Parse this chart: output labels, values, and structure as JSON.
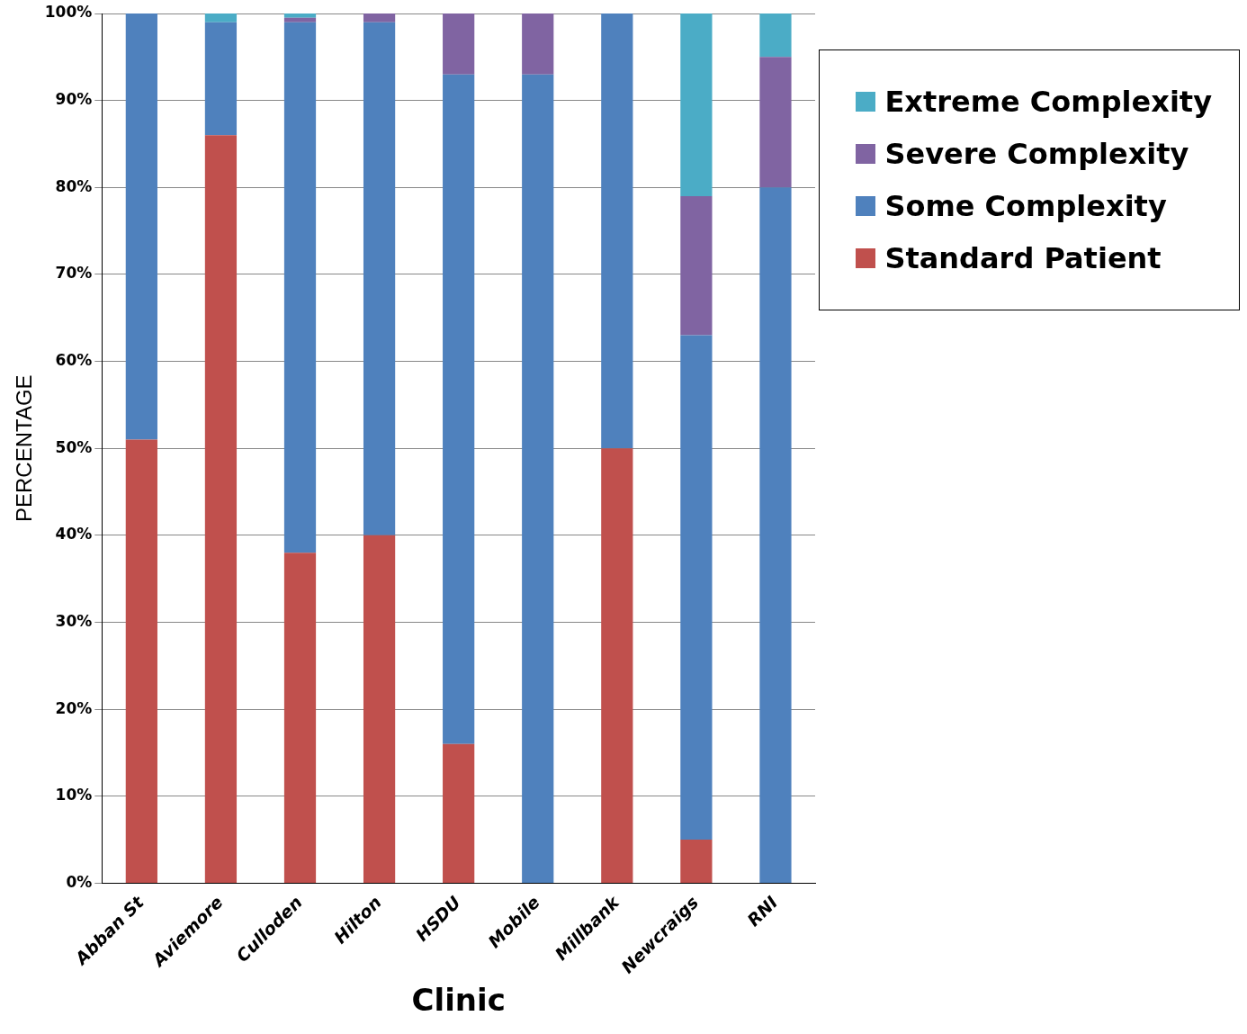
{
  "chart_data": {
    "type": "bar",
    "stacked": true,
    "xlabel": "Clinic",
    "ylabel": "PERCENTAGE",
    "categories": [
      "Abban St",
      "Aviemore",
      "Culloden",
      "Hilton",
      "HSDU",
      "Mobile",
      "Millbank",
      "Newcraigs",
      "RNI"
    ],
    "series": [
      {
        "name": "Standard Patient",
        "color": "#c0504d",
        "values": [
          51,
          86,
          38,
          40,
          16,
          0,
          50,
          5,
          0
        ]
      },
      {
        "name": "Some Complexity",
        "color": "#4f81bd",
        "values": [
          49,
          13,
          61,
          59,
          77,
          93,
          50,
          58,
          80
        ]
      },
      {
        "name": "Severe Complexity",
        "color": "#8064a2",
        "values": [
          0,
          0,
          0.5,
          1,
          7,
          7,
          0,
          16,
          15
        ]
      },
      {
        "name": "Extreme Complexity",
        "color": "#4bacc6",
        "values": [
          0,
          1,
          0.5,
          0,
          0,
          0,
          0,
          21,
          5
        ]
      }
    ],
    "ylim": [
      0,
      100
    ],
    "yticks": [
      {
        "value": 0,
        "label": "0%"
      },
      {
        "value": 10,
        "label": "10%"
      },
      {
        "value": 20,
        "label": "20%"
      },
      {
        "value": 30,
        "label": "30%"
      },
      {
        "value": 40,
        "label": "40%"
      },
      {
        "value": 50,
        "label": "50%"
      },
      {
        "value": 60,
        "label": "60%"
      },
      {
        "value": 70,
        "label": "70%"
      },
      {
        "value": 80,
        "label": "80%"
      },
      {
        "value": 90,
        "label": "90%"
      },
      {
        "value": 100,
        "label": "100%"
      }
    ],
    "grid": "y",
    "legend": "right"
  }
}
